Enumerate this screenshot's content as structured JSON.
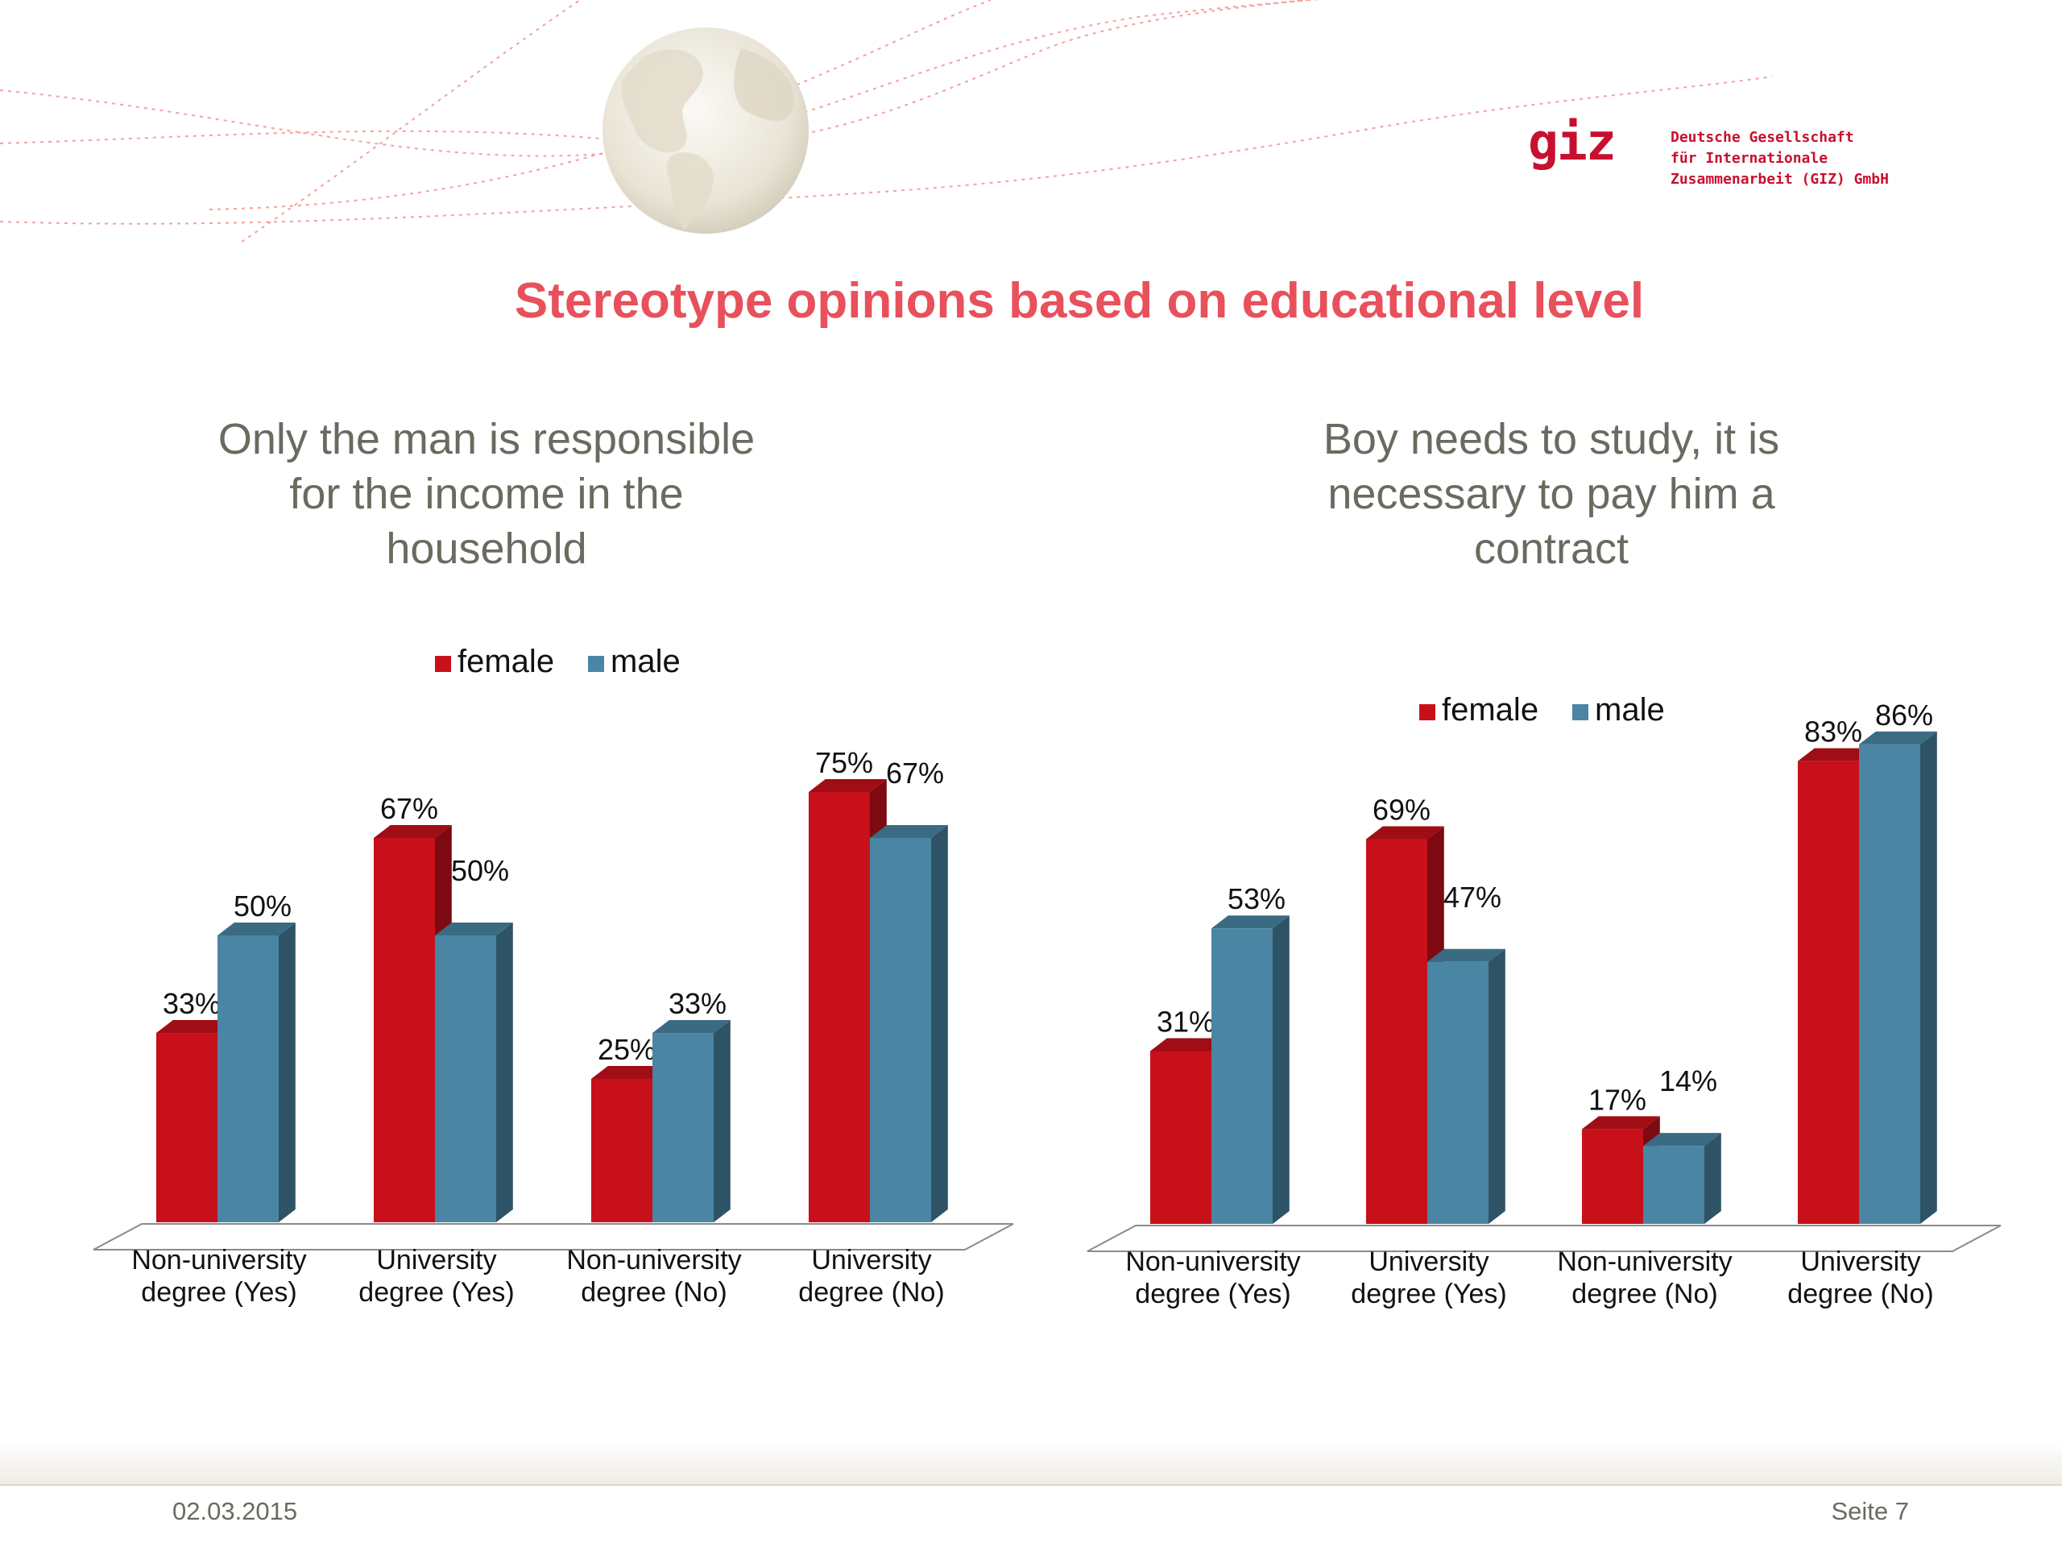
{
  "logo": {
    "word": "giz",
    "lines": [
      "Deutsche Gesellschaft",
      "für Internationale",
      "Zusammenarbeit (GIZ) GmbH"
    ]
  },
  "title": "Stereotype opinions based on educational level",
  "footer": {
    "date": "02.03.2015",
    "page": "Seite 7"
  },
  "colors": {
    "female": "#c8101a",
    "male": "#4a86a4",
    "title": "#e8505b",
    "subtitle": "#6b6a60"
  },
  "chart_data": [
    {
      "type": "bar",
      "title_lines": [
        "Only the man is responsible",
        "for the income in the",
        "household"
      ],
      "categories": [
        [
          "Non-university",
          "degree (Yes)"
        ],
        [
          "University",
          "degree (Yes)"
        ],
        [
          "Non-university",
          "degree (No)"
        ],
        [
          "University",
          "degree (No)"
        ]
      ],
      "legend": [
        "female",
        "male"
      ],
      "legend_position": "top",
      "series": [
        {
          "name": "female",
          "values": [
            33,
            67,
            25,
            75
          ],
          "labels": [
            "33%",
            "67%",
            "25%",
            "75%"
          ]
        },
        {
          "name": "male",
          "values": [
            50,
            50,
            33,
            67
          ],
          "labels": [
            "50%",
            "50%",
            "33%",
            "67%"
          ]
        }
      ],
      "ylim": [
        0,
        100
      ],
      "grid": false
    },
    {
      "type": "bar",
      "title_lines": [
        "Boy needs to study, it is",
        "necessary to pay him a",
        "contract"
      ],
      "categories": [
        [
          "Non-university",
          "degree (Yes)"
        ],
        [
          "University",
          "degree (Yes)"
        ],
        [
          "Non-university",
          "degree (No)"
        ],
        [
          "University",
          "degree (No)"
        ]
      ],
      "legend": [
        "female",
        "male"
      ],
      "legend_position": "top",
      "series": [
        {
          "name": "female",
          "values": [
            31,
            69,
            17,
            83
          ],
          "labels": [
            "31%",
            "69%",
            "17%",
            "83%"
          ]
        },
        {
          "name": "male",
          "values": [
            53,
            47,
            14,
            86
          ],
          "labels": [
            "53%",
            "47%",
            "14%",
            "86%"
          ]
        }
      ],
      "ylim": [
        0,
        100
      ],
      "grid": false
    }
  ]
}
